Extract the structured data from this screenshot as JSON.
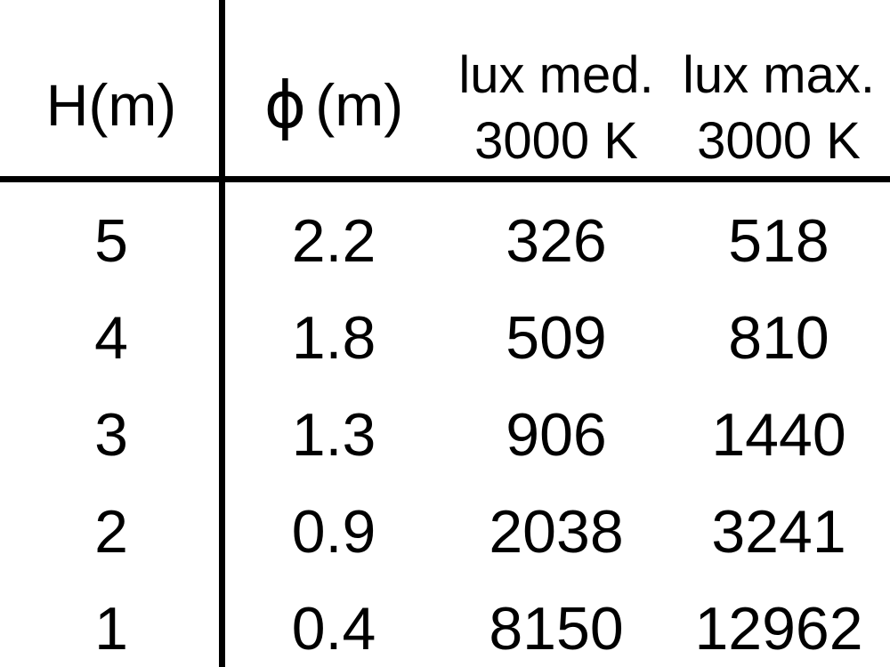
{
  "chart_data": {
    "type": "table",
    "columns": [
      "H(m)",
      "ϕ(m)",
      "lux med. 3000 K",
      "lux max. 3000 K"
    ],
    "rows": [
      [
        5,
        2.2,
        326,
        518
      ],
      [
        4,
        1.8,
        509,
        810
      ],
      [
        3,
        1.3,
        906,
        1440
      ],
      [
        2,
        0.9,
        2038,
        3241
      ],
      [
        1,
        0.4,
        8150,
        12962
      ]
    ],
    "layout": {
      "vertical_rule_after_column": 1,
      "horizontal_rule_below_header": true,
      "grid": "off"
    }
  },
  "header": {
    "h_label": "H(m)",
    "phi_symbol": "ϕ",
    "phi_suffix": "(m)",
    "lux_med_line1": "lux med.",
    "lux_med_line2": "3000 K",
    "lux_max_line1": "lux max.",
    "lux_max_line2": "3000 K"
  },
  "body": {
    "rows": [
      {
        "h": "5",
        "phi": "2.2",
        "lux_med": "326",
        "lux_max": "518"
      },
      {
        "h": "4",
        "phi": "1.8",
        "lux_med": "509",
        "lux_max": "810"
      },
      {
        "h": "3",
        "phi": "1.3",
        "lux_med": "906",
        "lux_max": "1440"
      },
      {
        "h": "2",
        "phi": "0.9",
        "lux_med": "2038",
        "lux_max": "3241"
      },
      {
        "h": "1",
        "phi": "0.4",
        "lux_med": "8150",
        "lux_max": "12962"
      }
    ]
  },
  "colors": {
    "text": "#000000",
    "background": "#ffffff",
    "rule": "#000000"
  }
}
